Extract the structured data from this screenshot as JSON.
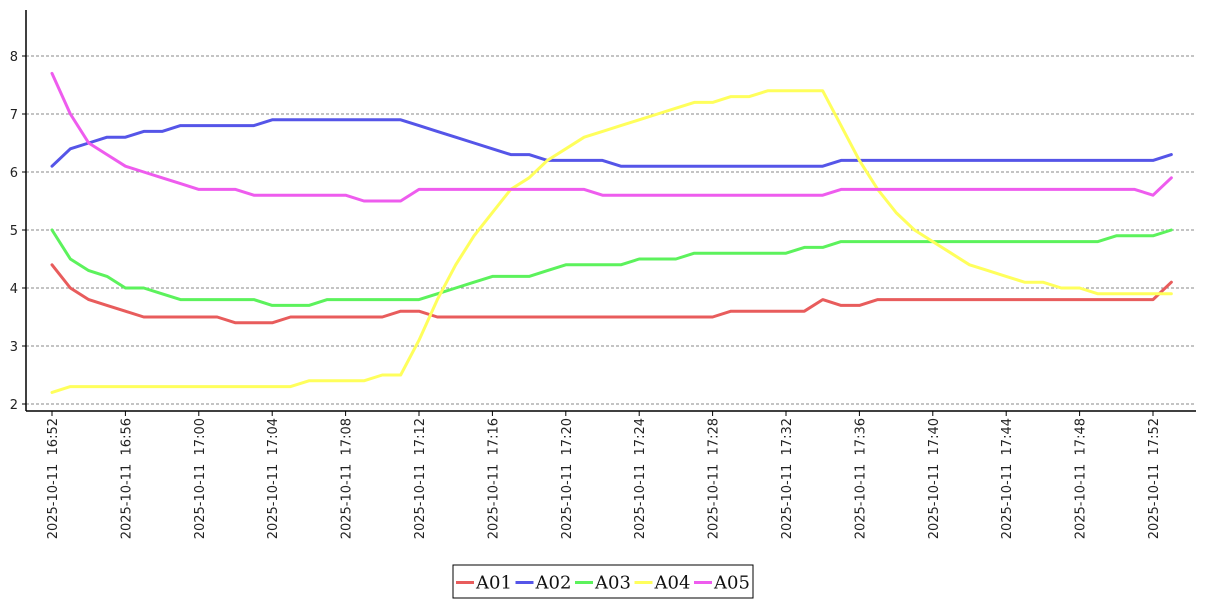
{
  "chart_data": {
    "type": "line",
    "title": "",
    "xlabel": "",
    "ylabel": "",
    "ylim": [
      1.9,
      8.85
    ],
    "yticks": [
      2,
      3,
      4,
      5,
      6,
      7,
      8
    ],
    "grid": "horizontal-dashed",
    "legend_position": "bottom-center",
    "x": [
      "16:52",
      "16:53",
      "16:54",
      "16:55",
      "16:56",
      "16:57",
      "16:58",
      "16:59",
      "17:00",
      "17:01",
      "17:02",
      "17:03",
      "17:04",
      "17:05",
      "17:06",
      "17:07",
      "17:08",
      "17:09",
      "17:10",
      "17:11",
      "17:12",
      "17:13",
      "17:14",
      "17:15",
      "17:16",
      "17:17",
      "17:18",
      "17:19",
      "17:20",
      "17:21",
      "17:22",
      "17:23",
      "17:24",
      "17:25",
      "17:26",
      "17:27",
      "17:28",
      "17:29",
      "17:30",
      "17:31",
      "17:32",
      "17:33",
      "17:34",
      "17:35",
      "17:36",
      "17:37",
      "17:38",
      "17:39",
      "17:40",
      "17:41",
      "17:42",
      "17:43",
      "17:44",
      "17:45",
      "17:46",
      "17:47",
      "17:48",
      "17:49",
      "17:50",
      "17:51",
      "17:52",
      "17:53"
    ],
    "xticks": [
      "2025-10-11  16:52",
      "2025-10-11  16:56",
      "2025-10-11  17:00",
      "2025-10-11  17:04",
      "2025-10-11  17:08",
      "2025-10-11  17:12",
      "2025-10-11  17:16",
      "2025-10-11  17:20",
      "2025-10-11  17:24",
      "2025-10-11  17:28",
      "2025-10-11  17:32",
      "2025-10-11  17:36",
      "2025-10-11  17:40",
      "2025-10-11  17:44",
      "2025-10-11  17:48",
      "2025-10-11  17:52"
    ],
    "series": [
      {
        "name": "A01",
        "color": "#e85c5c",
        "values": [
          4.4,
          4.0,
          3.8,
          3.7,
          3.6,
          3.5,
          3.5,
          3.5,
          3.5,
          3.5,
          3.4,
          3.4,
          3.4,
          3.5,
          3.5,
          3.5,
          3.5,
          3.5,
          3.5,
          3.6,
          3.6,
          3.5,
          3.5,
          3.5,
          3.5,
          3.5,
          3.5,
          3.5,
          3.5,
          3.5,
          3.5,
          3.5,
          3.5,
          3.5,
          3.5,
          3.5,
          3.5,
          3.6,
          3.6,
          3.6,
          3.6,
          3.6,
          3.8,
          3.7,
          3.7,
          3.8,
          3.8,
          3.8,
          3.8,
          3.8,
          3.8,
          3.8,
          3.8,
          3.8,
          3.8,
          3.8,
          3.8,
          3.8,
          3.8,
          3.8,
          3.8,
          4.1
        ]
      },
      {
        "name": "A02",
        "color": "#5555e8",
        "values": [
          6.1,
          6.4,
          6.5,
          6.6,
          6.6,
          6.7,
          6.7,
          6.8,
          6.8,
          6.8,
          6.8,
          6.8,
          6.9,
          6.9,
          6.9,
          6.9,
          6.9,
          6.9,
          6.9,
          6.9,
          6.8,
          6.7,
          6.6,
          6.5,
          6.4,
          6.3,
          6.3,
          6.2,
          6.2,
          6.2,
          6.2,
          6.1,
          6.1,
          6.1,
          6.1,
          6.1,
          6.1,
          6.1,
          6.1,
          6.1,
          6.1,
          6.1,
          6.1,
          6.2,
          6.2,
          6.2,
          6.2,
          6.2,
          6.2,
          6.2,
          6.2,
          6.2,
          6.2,
          6.2,
          6.2,
          6.2,
          6.2,
          6.2,
          6.2,
          6.2,
          6.2,
          6.3
        ]
      },
      {
        "name": "A03",
        "color": "#5cf25c",
        "values": [
          5.0,
          4.5,
          4.3,
          4.2,
          4.0,
          4.0,
          3.9,
          3.8,
          3.8,
          3.8,
          3.8,
          3.8,
          3.7,
          3.7,
          3.7,
          3.8,
          3.8,
          3.8,
          3.8,
          3.8,
          3.8,
          3.9,
          4.0,
          4.1,
          4.2,
          4.2,
          4.2,
          4.3,
          4.4,
          4.4,
          4.4,
          4.4,
          4.5,
          4.5,
          4.5,
          4.6,
          4.6,
          4.6,
          4.6,
          4.6,
          4.6,
          4.7,
          4.7,
          4.8,
          4.8,
          4.8,
          4.8,
          4.8,
          4.8,
          4.8,
          4.8,
          4.8,
          4.8,
          4.8,
          4.8,
          4.8,
          4.8,
          4.8,
          4.9,
          4.9,
          4.9,
          5.0
        ]
      },
      {
        "name": "A04",
        "color": "#ffff5c",
        "values": [
          2.2,
          2.3,
          2.3,
          2.3,
          2.3,
          2.3,
          2.3,
          2.3,
          2.3,
          2.3,
          2.3,
          2.3,
          2.3,
          2.3,
          2.4,
          2.4,
          2.4,
          2.4,
          2.5,
          2.5,
          3.1,
          3.8,
          4.4,
          4.9,
          5.3,
          5.7,
          5.9,
          6.2,
          6.4,
          6.6,
          6.7,
          6.8,
          6.9,
          7.0,
          7.1,
          7.2,
          7.2,
          7.3,
          7.3,
          7.4,
          7.4,
          7.4,
          7.4,
          6.8,
          6.2,
          5.7,
          5.3,
          5.0,
          4.8,
          4.6,
          4.4,
          4.3,
          4.2,
          4.1,
          4.1,
          4.0,
          4.0,
          3.9,
          3.9,
          3.9,
          3.9,
          3.9
        ]
      },
      {
        "name": "A05",
        "color": "#ee5cee",
        "values": [
          7.7,
          7.0,
          6.5,
          6.3,
          6.1,
          6.0,
          5.9,
          5.8,
          5.7,
          5.7,
          5.7,
          5.6,
          5.6,
          5.6,
          5.6,
          5.6,
          5.6,
          5.5,
          5.5,
          5.5,
          5.7,
          5.7,
          5.7,
          5.7,
          5.7,
          5.7,
          5.7,
          5.7,
          5.7,
          5.7,
          5.6,
          5.6,
          5.6,
          5.6,
          5.6,
          5.6,
          5.6,
          5.6,
          5.6,
          5.6,
          5.6,
          5.6,
          5.6,
          5.7,
          5.7,
          5.7,
          5.7,
          5.7,
          5.7,
          5.7,
          5.7,
          5.7,
          5.7,
          5.7,
          5.7,
          5.7,
          5.7,
          5.7,
          5.7,
          5.7,
          5.6,
          5.9
        ]
      }
    ]
  }
}
